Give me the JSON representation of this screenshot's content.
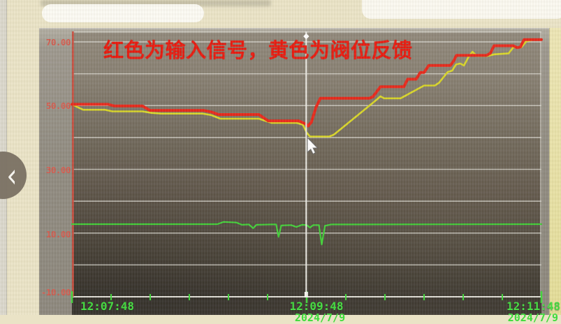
{
  "annotation": {
    "title": "红色为输入信号，黄色为阀位反馈",
    "title_color": "#e8150a"
  },
  "nav": {
    "prev_label": "‹"
  },
  "y_axis": {
    "labels": [
      "70.00",
      "50.00",
      "30.00",
      "10.00",
      "-10.00"
    ],
    "color": "#d4574a"
  },
  "x_axis": {
    "labels": [
      "12:07:48",
      "12:09:48",
      "12:11:48"
    ],
    "clipped_row": [
      "2024/7/9",
      "2024/7/9"
    ],
    "color": "#3fdc3c"
  },
  "chart_data": {
    "type": "line",
    "title": "红色为输入信号，黄色为阀位反馈",
    "xlabel": "",
    "ylabel": "",
    "ylim": [
      -10,
      70
    ],
    "grid_step": 10,
    "grid": "horizontal",
    "x_tick_labels": [
      "12:07:48",
      "12:09:48",
      "12:11:48"
    ],
    "x_minor_tick_count": 12,
    "cursor_x_fraction": 0.499,
    "legend_note": "red = input signal, yellow = valve position feedback (from on-screen annotation); green trace unlabeled",
    "colors": {
      "grid": "#d8d6ce",
      "axis_red": "#c8493a",
      "tick_green": "#3fd83a",
      "cursor": "#f0efe9"
    },
    "series": [
      {
        "name": "valve-feedback-yellow",
        "color": "#d8d525",
        "width": 2.6,
        "points": [
          [
            0,
            50.4
          ],
          [
            0.012,
            49.5
          ],
          [
            0.024,
            48.7
          ],
          [
            0.07,
            48.7
          ],
          [
            0.086,
            48.2
          ],
          [
            0.15,
            48.2
          ],
          [
            0.17,
            47.7
          ],
          [
            0.19,
            47.5
          ],
          [
            0.278,
            47.5
          ],
          [
            0.297,
            47.0
          ],
          [
            0.316,
            45.9
          ],
          [
            0.398,
            45.9
          ],
          [
            0.425,
            44.6
          ],
          [
            0.478,
            44.6
          ],
          [
            0.492,
            44.0
          ],
          [
            0.5,
            41.5
          ],
          [
            0.507,
            40.3
          ],
          [
            0.548,
            40.3
          ],
          [
            0.558,
            40.9
          ],
          [
            0.647,
            51.6
          ],
          [
            0.657,
            52.9
          ],
          [
            0.665,
            52.3
          ],
          [
            0.7,
            52.3
          ],
          [
            0.75,
            56.3
          ],
          [
            0.773,
            56.3
          ],
          [
            0.782,
            57.2
          ],
          [
            0.8,
            60.5
          ],
          [
            0.81,
            61.0
          ],
          [
            0.818,
            62.9
          ],
          [
            0.827,
            63.2
          ],
          [
            0.835,
            62.6
          ],
          [
            0.845,
            65.3
          ],
          [
            0.853,
            66.9
          ],
          [
            0.862,
            65.6
          ],
          [
            0.885,
            65.6
          ],
          [
            0.9,
            66.1
          ],
          [
            0.93,
            66.4
          ],
          [
            0.94,
            68.3
          ],
          [
            0.957,
            68.3
          ],
          [
            0.968,
            70.2
          ],
          [
            0.985,
            70.7
          ],
          [
            1,
            70.7
          ]
        ]
      },
      {
        "name": "input-signal-red",
        "color": "#e62417",
        "width": 4,
        "points": [
          [
            0,
            50.4
          ],
          [
            0.077,
            50.4
          ],
          [
            0.09,
            49.9
          ],
          [
            0.15,
            49.9
          ],
          [
            0.166,
            48.5
          ],
          [
            0.28,
            48.5
          ],
          [
            0.297,
            48.0
          ],
          [
            0.312,
            47.2
          ],
          [
            0.398,
            47.2
          ],
          [
            0.418,
            45.2
          ],
          [
            0.483,
            45.2
          ],
          [
            0.497,
            44.3
          ],
          [
            0.503,
            43.6
          ],
          [
            0.51,
            44.8
          ],
          [
            0.52,
            49.5
          ],
          [
            0.529,
            52.3
          ],
          [
            0.633,
            52.3
          ],
          [
            0.641,
            52.8
          ],
          [
            0.657,
            55.9
          ],
          [
            0.707,
            55.9
          ],
          [
            0.715,
            58.3
          ],
          [
            0.733,
            58.3
          ],
          [
            0.742,
            60.4
          ],
          [
            0.75,
            60.4
          ],
          [
            0.76,
            62.6
          ],
          [
            0.806,
            62.6
          ],
          [
            0.813,
            64.0
          ],
          [
            0.819,
            65.8
          ],
          [
            0.883,
            65.8
          ],
          [
            0.891,
            66.4
          ],
          [
            0.899,
            68.8
          ],
          [
            0.94,
            68.8
          ],
          [
            0.948,
            68.2
          ],
          [
            0.955,
            68.4
          ],
          [
            0.963,
            70.7
          ],
          [
            1,
            70.7
          ]
        ]
      },
      {
        "name": "green-trace",
        "color": "#3ecf35",
        "width": 2.2,
        "points": [
          [
            0,
            12.8
          ],
          [
            0.31,
            12.8
          ],
          [
            0.323,
            13.5
          ],
          [
            0.35,
            13.3
          ],
          [
            0.362,
            12.6
          ],
          [
            0.377,
            12.7
          ],
          [
            0.386,
            11.5
          ],
          [
            0.393,
            12.6
          ],
          [
            0.424,
            12.7
          ],
          [
            0.435,
            12.7
          ],
          [
            0.44,
            8.8
          ],
          [
            0.446,
            12.4
          ],
          [
            0.467,
            12.5
          ],
          [
            0.478,
            11.9
          ],
          [
            0.49,
            12.6
          ],
          [
            0.5,
            12.5
          ],
          [
            0.507,
            11.7
          ],
          [
            0.514,
            12.5
          ],
          [
            0.526,
            12.5
          ],
          [
            0.532,
            6.4
          ],
          [
            0.539,
            12.3
          ],
          [
            0.552,
            12.7
          ],
          [
            1,
            12.8
          ]
        ]
      }
    ]
  }
}
